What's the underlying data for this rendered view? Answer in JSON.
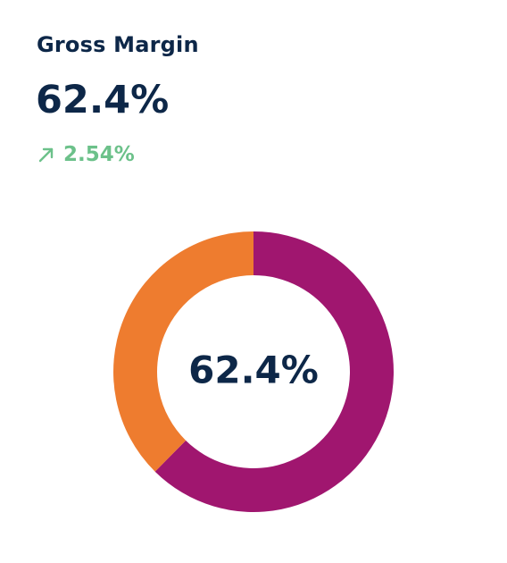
{
  "card": {
    "title": "Gross Margin",
    "value": "62.4%",
    "delta": {
      "direction": "up",
      "icon": "arrow-up-right-icon",
      "value": "2.54%",
      "color": "#6cc18a"
    }
  },
  "chart_data": {
    "type": "pie",
    "variant": "donut",
    "center_label": "62.4%",
    "categories": [
      "",
      ""
    ],
    "values": [
      62.4,
      37.6
    ],
    "colors": [
      "#a0166f",
      "#ee7c2f"
    ],
    "start": "top",
    "direction": "clockwise"
  }
}
